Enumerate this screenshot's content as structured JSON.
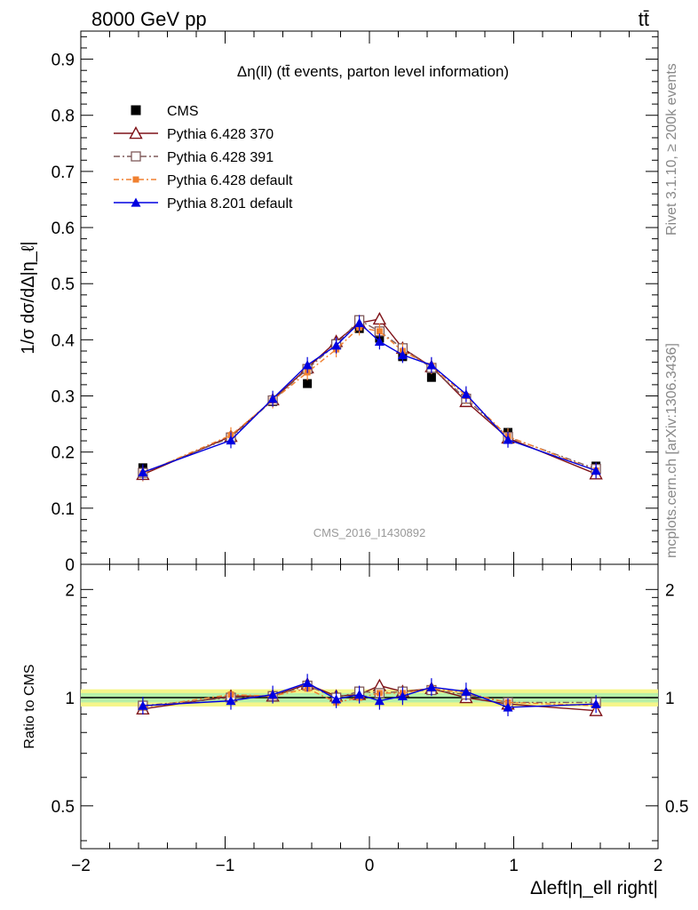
{
  "header": {
    "energy": "8000 GeV pp",
    "process": "tt̄"
  },
  "side_labels": {
    "rivet": "Rivet 3.1.10, ≥ 200k events",
    "source": "mcplots.cern.ch [arXiv:1306.3436]"
  },
  "chart_data": [
    {
      "type": "line",
      "title": "Δη(ll) (tt̄ events, parton level information)",
      "watermark": "CMS_2016_I1430892",
      "ylabel": "1/σ dσ/dΔ|η_ℓ|",
      "xlim": [
        -2.0,
        2.0
      ],
      "ylim": [
        0.0,
        0.95
      ],
      "yticks": [
        "0",
        "0.1",
        "0.2",
        "0.3",
        "0.4",
        "0.5",
        "0.6",
        "0.7",
        "0.8",
        "0.9"
      ],
      "x": [
        -1.57,
        -0.96,
        -0.67,
        -0.43,
        -0.23,
        -0.07,
        0.07,
        0.23,
        0.43,
        0.67,
        0.96,
        1.57
      ],
      "legend_position": "top-left",
      "series": [
        {
          "name": "CMS",
          "color": "#000000",
          "marker": "square-filled",
          "values": [
            0.172,
            0.225,
            0.29,
            0.322,
            0.393,
            0.42,
            0.403,
            0.37,
            0.333,
            0.29,
            0.235,
            0.175
          ]
        },
        {
          "name": "Pythia 6.428 370",
          "color": "#7f1218",
          "marker": "triangle-open",
          "values": [
            0.16,
            0.228,
            0.293,
            0.35,
            0.397,
            0.43,
            0.437,
            0.385,
            0.352,
            0.29,
            0.225,
            0.161
          ]
        },
        {
          "name": "Pythia 6.428 391",
          "color": "#7f5a5a",
          "marker": "square-open",
          "values": [
            0.163,
            0.226,
            0.292,
            0.348,
            0.392,
            0.435,
            0.415,
            0.385,
            0.35,
            0.295,
            0.227,
            0.17
          ]
        },
        {
          "name": "Pythia 6.428 default",
          "color": "#f08030",
          "marker": "square-filled-small",
          "values": [
            0.162,
            0.23,
            0.292,
            0.342,
            0.383,
            0.422,
            0.415,
            0.38,
            0.353,
            0.3,
            0.228,
            0.167
          ]
        },
        {
          "name": "Pythia 8.201 default",
          "color": "#0000e0",
          "marker": "triangle-filled",
          "values": [
            0.164,
            0.221,
            0.295,
            0.355,
            0.39,
            0.43,
            0.397,
            0.373,
            0.355,
            0.303,
            0.222,
            0.167
          ]
        }
      ]
    },
    {
      "type": "line",
      "ylabel": "Ratio to CMS",
      "xlabel": "Δleft|η_ell right|",
      "xlim": [
        -2.0,
        2.0
      ],
      "ylim": [
        0.38,
        2.35
      ],
      "log_y": true,
      "xticks": [
        "−2",
        "−1",
        "0",
        "1",
        "2"
      ],
      "yticks": [
        "0.5",
        "1",
        "2"
      ],
      "x": [
        -1.57,
        -0.96,
        -0.67,
        -0.43,
        -0.23,
        -0.07,
        0.07,
        0.23,
        0.43,
        0.67,
        0.96,
        1.57
      ],
      "series": [
        {
          "name": "Pythia 6.428 370",
          "values": [
            0.93,
            1.01,
            1.01,
            1.09,
            1.01,
            1.02,
            1.08,
            1.04,
            1.06,
            1.0,
            0.96,
            0.92
          ]
        },
        {
          "name": "Pythia 6.428 391",
          "values": [
            0.95,
            1.0,
            1.01,
            1.08,
            1.0,
            1.04,
            1.03,
            1.04,
            1.05,
            1.02,
            0.97,
            0.97
          ]
        },
        {
          "name": "Pythia 6.428 default",
          "values": [
            0.94,
            1.02,
            1.01,
            1.06,
            0.97,
            1.0,
            1.03,
            1.03,
            1.06,
            1.03,
            0.97,
            0.95
          ]
        },
        {
          "name": "Pythia 8.201 default",
          "values": [
            0.95,
            0.98,
            1.02,
            1.1,
            0.99,
            1.02,
            0.98,
            1.01,
            1.07,
            1.04,
            0.94,
            0.96
          ]
        }
      ]
    }
  ]
}
